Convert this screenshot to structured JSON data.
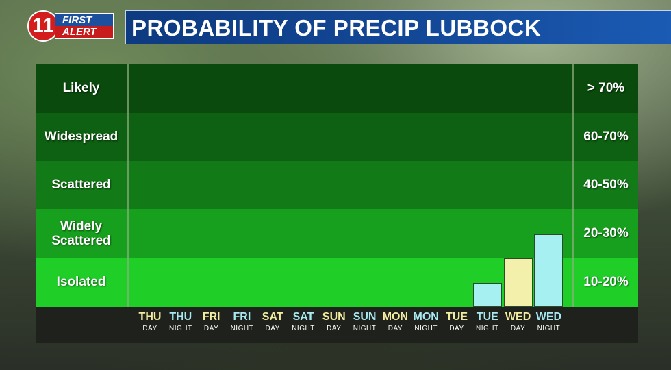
{
  "header": {
    "title": "PROBABILITY OF PRECIP LUBBOCK"
  },
  "logo": {
    "number": "11",
    "line1": "FIRST",
    "line2": "ALERT"
  },
  "colors": {
    "band_likely": "#0a4a0c",
    "band_widespread": "#0e6012",
    "band_scattered": "#127a17",
    "band_widely": "#17a01d",
    "band_isolated": "#1fcf28",
    "day_text": "#f2eba0",
    "night_text": "#a8e8f0",
    "bar_night": "#a6f0f2",
    "bar_day": "#f2f0aa"
  },
  "chart_data": {
    "type": "bar",
    "title": "PROBABILITY OF PRECIP LUBBOCK",
    "categories": [
      {
        "top": "THU",
        "bottom": "DAY"
      },
      {
        "top": "THU",
        "bottom": "NIGHT"
      },
      {
        "top": "FRI",
        "bottom": "DAY"
      },
      {
        "top": "FRI",
        "bottom": "NIGHT"
      },
      {
        "top": "SAT",
        "bottom": "DAY"
      },
      {
        "top": "SAT",
        "bottom": "NIGHT"
      },
      {
        "top": "SUN",
        "bottom": "DAY"
      },
      {
        "top": "SUN",
        "bottom": "NIGHT"
      },
      {
        "top": "MON",
        "bottom": "DAY"
      },
      {
        "top": "MON",
        "bottom": "NIGHT"
      },
      {
        "top": "TUE",
        "bottom": "DAY"
      },
      {
        "top": "TUE",
        "bottom": "NIGHT"
      },
      {
        "top": "WED",
        "bottom": "DAY"
      },
      {
        "top": "WED",
        "bottom": "NIGHT"
      }
    ],
    "values": [
      0,
      0,
      0,
      0,
      0,
      0,
      0,
      0,
      0,
      0,
      0,
      10,
      20,
      30
    ],
    "ylim": [
      0,
      100
    ],
    "bands": [
      {
        "label": "Likely",
        "range": "> 70%"
      },
      {
        "label": "Widespread",
        "range": "60-70%"
      },
      {
        "label": "Scattered",
        "range": "40-50%"
      },
      {
        "label": "Widely Scattered",
        "range": "20-30%"
      },
      {
        "label": "Isolated",
        "range": "10-20%"
      }
    ]
  }
}
